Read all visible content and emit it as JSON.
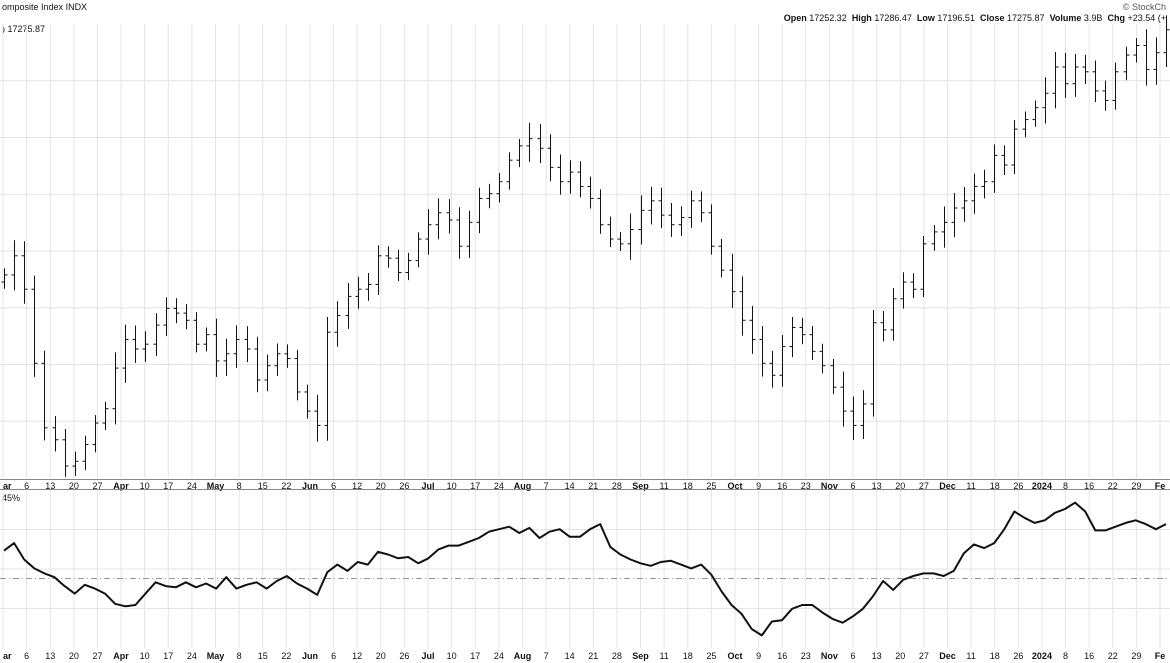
{
  "header": {
    "symbol_title": "omposite Index",
    "exchange": "INDX",
    "brand": "© StockCh",
    "open_label": "Open",
    "open_value": "17252.32",
    "high_label": "High",
    "high_value": "17286.47",
    "low_label": "Low",
    "low_value": "17196.51",
    "close_label": "Close",
    "close_value": "17275.87",
    "volume_label": "Volume",
    "volume_value": "3.9B",
    "chg_label": "Chg",
    "chg_value": "+23.54 (+",
    "price_legend": ") 17275.87",
    "indicator_legend": "45%"
  },
  "colors": {
    "bars": "#111111",
    "grid": "#e4e4e4",
    "refline": "#999999"
  },
  "chart_data": [
    {
      "type": "ohlc-bar",
      "x_tick_labels": [
        "ar",
        "6",
        "13",
        "20",
        "27",
        "Apr",
        "10",
        "17",
        "24",
        "May",
        "8",
        "15",
        "22",
        "Jun",
        "6",
        "12",
        "20",
        "26",
        "Jul",
        "10",
        "17",
        "24",
        "Aug",
        "7",
        "14",
        "21",
        "28",
        "Sep",
        "11",
        "18",
        "25",
        "Oct",
        "9",
        "16",
        "23",
        "Nov",
        "6",
        "13",
        "20",
        "27",
        "Dec",
        "11",
        "18",
        "26",
        "2024",
        "8",
        "16",
        "22",
        "29",
        "Fe"
      ],
      "bold_ticks": [
        "ar",
        "Apr",
        "May",
        "Jun",
        "Jul",
        "Aug",
        "Sep",
        "Oct",
        "Nov",
        "Dec",
        "2024",
        "Fe"
      ],
      "close_values": [
        16250,
        16330,
        16190,
        15880,
        15610,
        15560,
        15450,
        15470,
        15540,
        15630,
        15690,
        15860,
        15980,
        15940,
        15960,
        16040,
        16110,
        16090,
        16060,
        15960,
        16000,
        15890,
        15920,
        15980,
        15940,
        15810,
        15870,
        15920,
        15900,
        15760,
        15680,
        15620,
        16010,
        16080,
        16160,
        16190,
        16210,
        16330,
        16320,
        16260,
        16310,
        16400,
        16460,
        16510,
        16480,
        16370,
        16470,
        16570,
        16590,
        16640,
        16730,
        16790,
        16820,
        16780,
        16700,
        16640,
        16680,
        16620,
        16570,
        16460,
        16400,
        16380,
        16440,
        16520,
        16560,
        16500,
        16460,
        16490,
        16560,
        16510,
        16370,
        16270,
        16180,
        16060,
        15980,
        15880,
        15830,
        15950,
        16030,
        16000,
        15930,
        15870,
        15780,
        15680,
        15620,
        15710,
        16050,
        16020,
        16150,
        16220,
        16190,
        16380,
        16430,
        16470,
        16530,
        16560,
        16620,
        16640,
        16750,
        16710,
        16860,
        16900,
        16950,
        17010,
        17120,
        17050,
        17120,
        17100,
        17020,
        16980,
        17100,
        17170,
        17210,
        17110,
        17180,
        17275.87
      ],
      "ylim": [
        15400,
        17300
      ]
    },
    {
      "type": "line",
      "name": "45%",
      "values": [
        2.2,
        2.8,
        1.5,
        0.8,
        0.4,
        0.1,
        -0.6,
        -1.2,
        -0.5,
        -0.8,
        -1.2,
        -2.0,
        -2.2,
        -2.1,
        -1.2,
        -0.3,
        -0.6,
        -0.7,
        -0.3,
        -0.7,
        -0.4,
        -0.8,
        0.1,
        -0.8,
        -0.5,
        -0.3,
        -0.8,
        -0.2,
        0.2,
        -0.4,
        -0.8,
        -1.3,
        0.5,
        1.1,
        0.6,
        1.3,
        1.1,
        2.1,
        1.9,
        1.6,
        1.7,
        1.2,
        1.6,
        2.3,
        2.6,
        2.6,
        2.9,
        3.2,
        3.7,
        3.9,
        4.1,
        3.6,
        4.0,
        3.2,
        3.7,
        3.9,
        3.3,
        3.3,
        3.9,
        4.3,
        2.5,
        1.9,
        1.5,
        1.2,
        1.0,
        1.3,
        1.4,
        1.1,
        0.8,
        1.1,
        0.3,
        -1.0,
        -2.1,
        -2.8,
        -4.0,
        -4.5,
        -3.4,
        -3.3,
        -2.4,
        -2.1,
        -2.1,
        -2.7,
        -3.2,
        -3.5,
        -3.0,
        -2.4,
        -1.4,
        -0.2,
        -0.9,
        -0.1,
        0.2,
        0.4,
        0.4,
        0.2,
        0.6,
        2.0,
        2.7,
        2.4,
        2.8,
        3.9,
        5.3,
        4.8,
        4.4,
        4.6,
        5.2,
        5.5,
        6.0,
        5.3,
        3.8,
        3.8,
        4.1,
        4.4,
        4.6,
        4.3,
        3.9,
        4.3
      ],
      "reference_level": 0,
      "ylim": [
        -5.5,
        7.0
      ]
    }
  ]
}
